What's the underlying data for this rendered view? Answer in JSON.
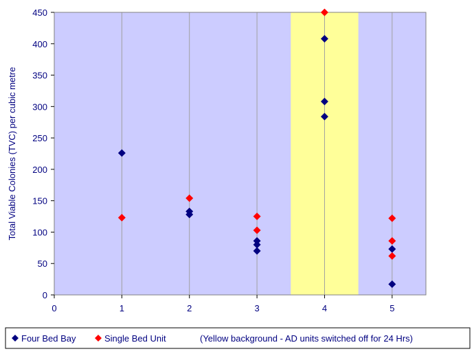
{
  "chart_data": {
    "type": "scatter",
    "title": "",
    "xlabel": "",
    "ylabel": "Total Viable Colonies (TVC) per cubic metre",
    "xlim": [
      0,
      5.5
    ],
    "ylim": [
      0,
      450
    ],
    "x_ticks": [
      "0",
      "1",
      "2",
      "3",
      "4",
      "5"
    ],
    "y_ticks": [
      "0",
      "50",
      "100",
      "150",
      "200",
      "250",
      "300",
      "350",
      "400",
      "450"
    ],
    "grid": "vertical",
    "plot_background": "#ccccff",
    "highlight_band": {
      "x_range": [
        3.5,
        4.5
      ],
      "color": "#ffff99"
    },
    "legend_position": "bottom",
    "legend_note": "(Yellow background - AD units switched off for 24 Hrs)",
    "series": [
      {
        "name": "Four Bed Bay",
        "color": "#000080",
        "marker": "diamond",
        "points": [
          [
            1,
            226
          ],
          [
            2,
            133
          ],
          [
            2,
            128
          ],
          [
            3,
            86
          ],
          [
            3,
            80
          ],
          [
            3,
            70
          ],
          [
            4,
            408
          ],
          [
            4,
            308
          ],
          [
            4,
            284
          ],
          [
            5,
            73
          ],
          [
            5,
            17
          ]
        ]
      },
      {
        "name": "Single Bed Unit",
        "color": "#ff0000",
        "marker": "diamond",
        "points": [
          [
            1,
            123
          ],
          [
            2,
            154
          ],
          [
            3,
            125
          ],
          [
            3,
            103
          ],
          [
            4,
            450
          ],
          [
            5,
            122
          ],
          [
            5,
            86
          ],
          [
            5,
            62
          ]
        ]
      }
    ]
  }
}
